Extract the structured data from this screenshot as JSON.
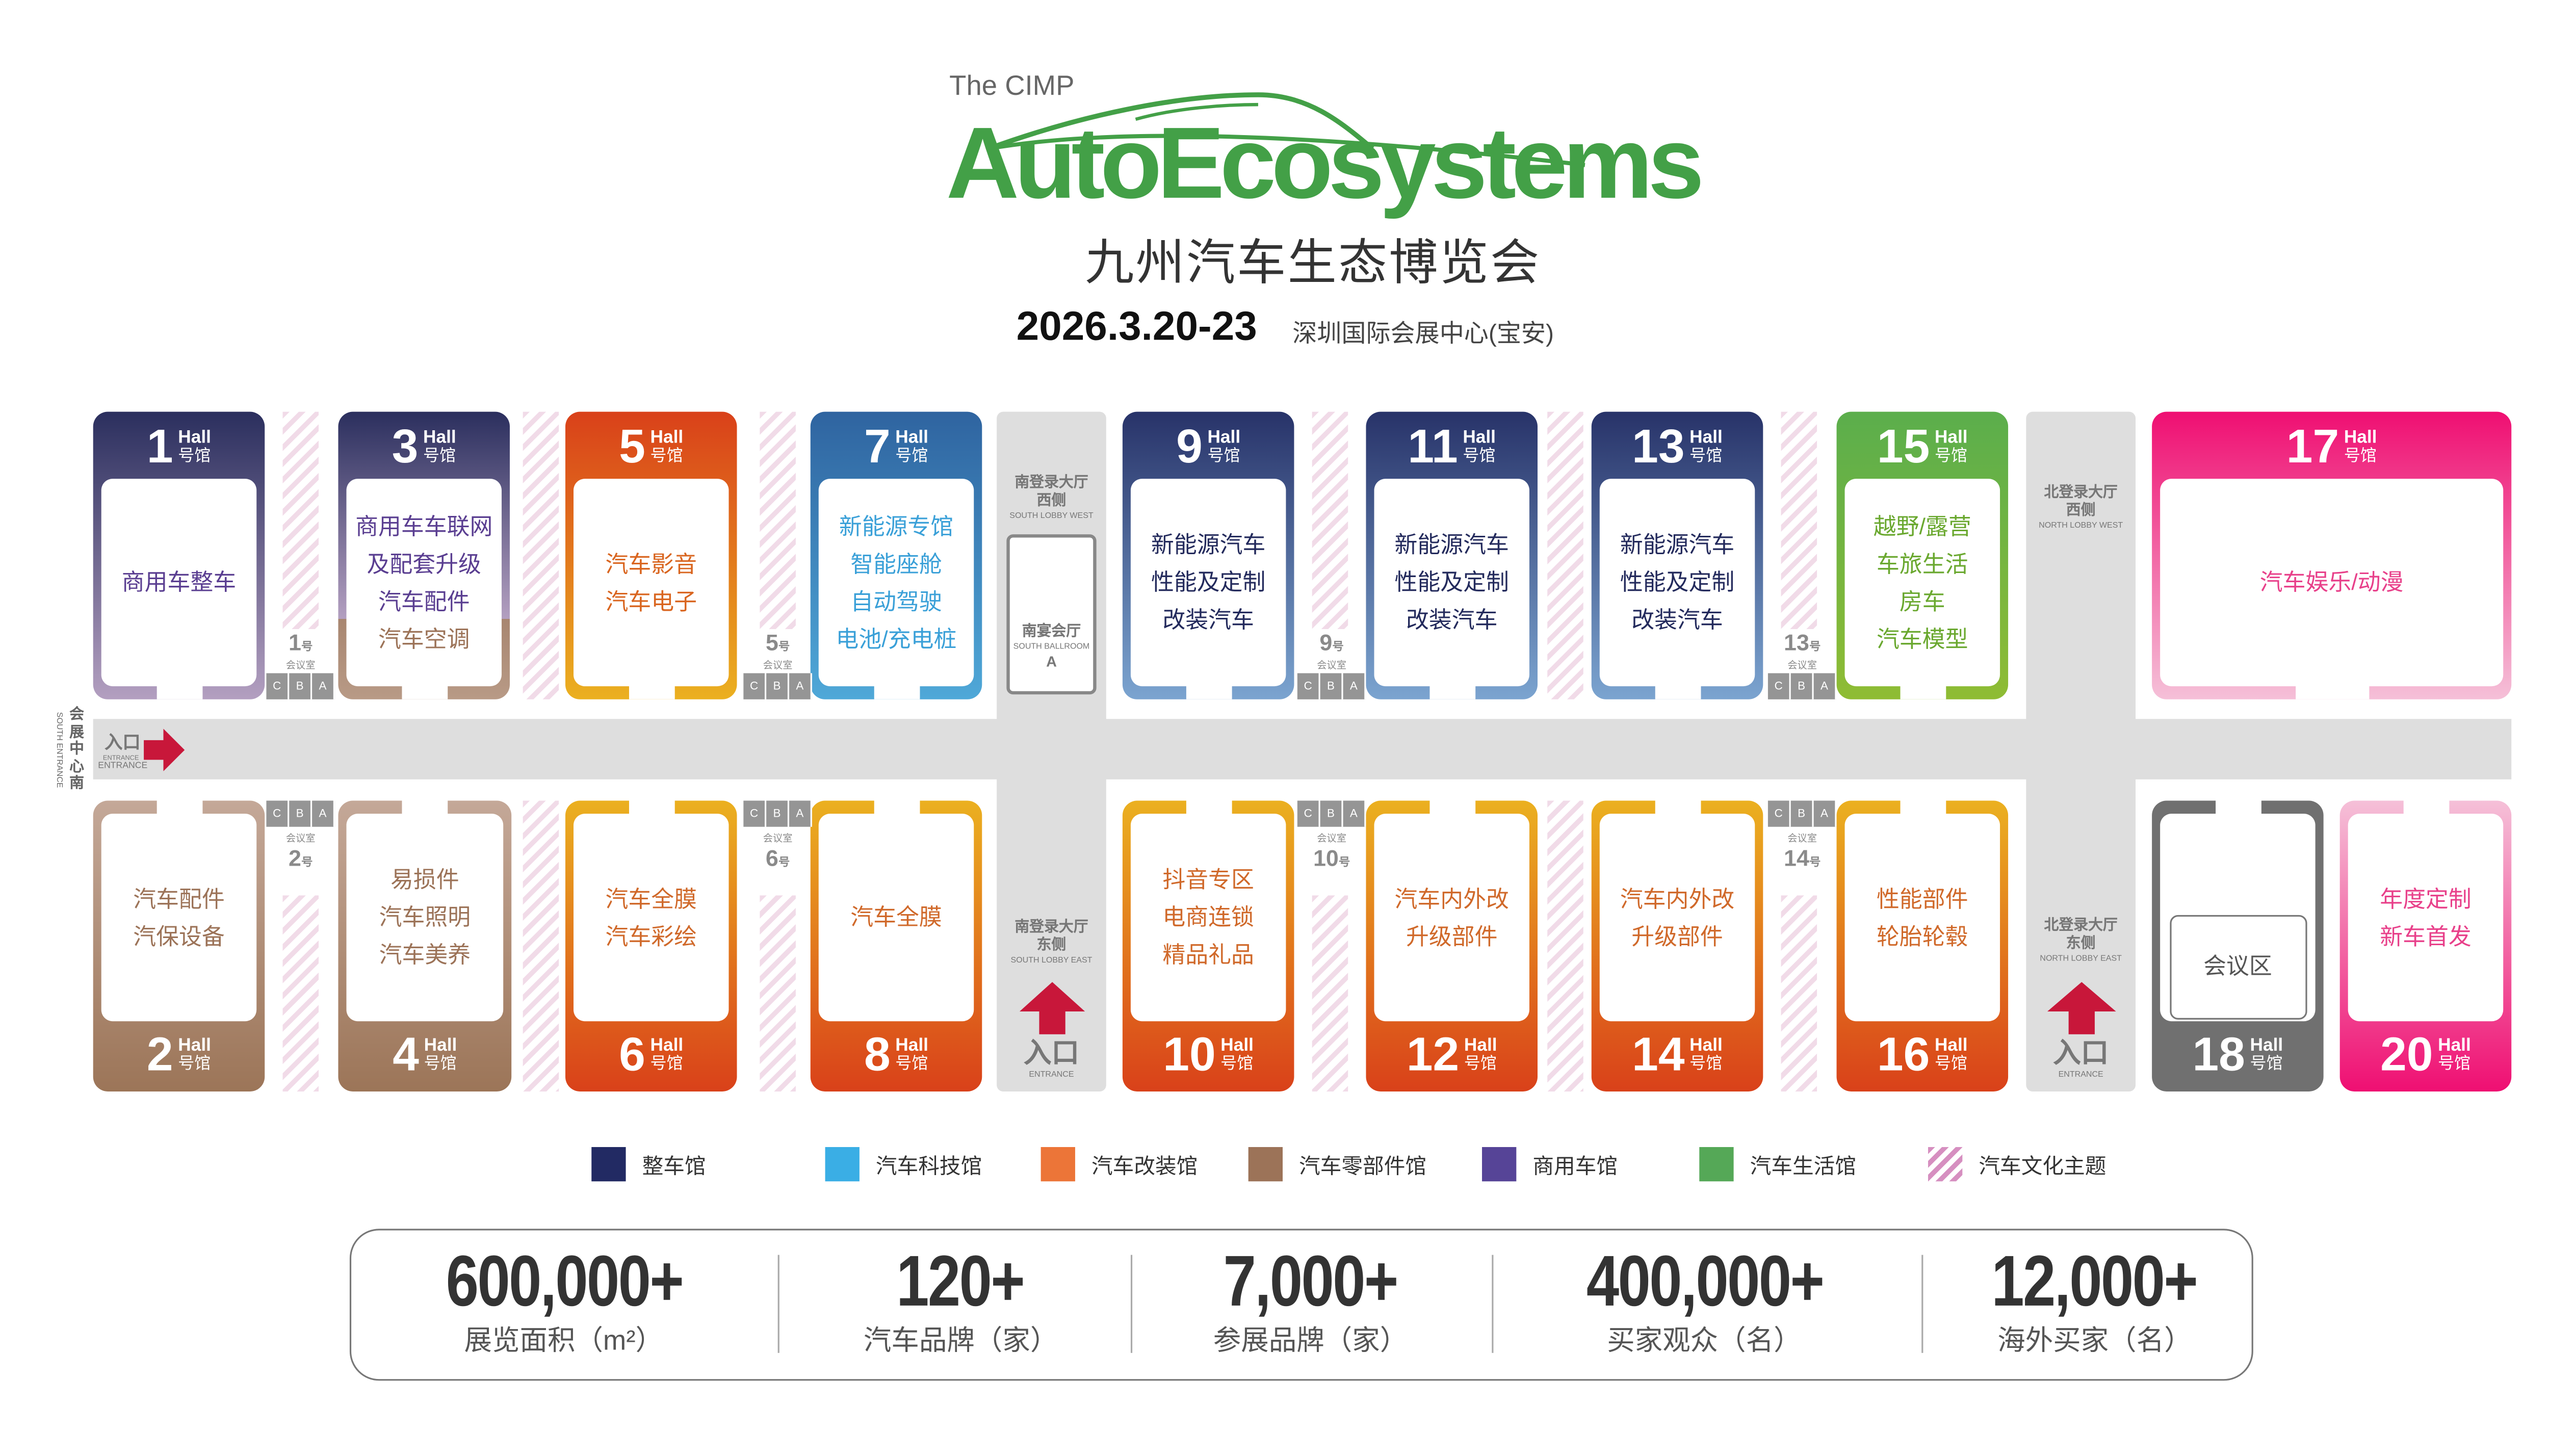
{
  "header": {
    "pretitle": "The CIMP",
    "brand": "AutoEcosystems",
    "title_cn": "九州汽车生态博览会",
    "date": "2026.3.20-23",
    "venue": "深圳国际会展中心(宝安)",
    "brand_color": "#43a047"
  },
  "hall_label": "Hall",
  "hall_suffix": "号馆",
  "meeting_suffix": "号",
  "meeting_label": "会议室",
  "meeting_cells": [
    "C",
    "B",
    "A"
  ],
  "halls": [
    {
      "number": "1",
      "lines": [
        "商用车整车"
      ],
      "text_color": "#5a3e91",
      "colors": [
        "#2b2f5e",
        "#b39fc0"
      ]
    },
    {
      "number": "3",
      "lines": [
        "商用车车联网",
        "及配套升级",
        "汽车配件",
        "汽车空调"
      ],
      "text_color": "#5a3e91",
      "last_line_color": "#9c7358",
      "colors": [
        "#2b2f5e",
        "#b39fc0",
        "#a88670"
      ]
    },
    {
      "number": "5",
      "lines": [
        "汽车影音",
        "汽车电子"
      ],
      "text_color": "#d9651f",
      "colors": [
        "#d9411a",
        "#ebb020"
      ]
    },
    {
      "number": "7",
      "lines": [
        "新能源专馆",
        "智能座舱",
        "自动驾驶",
        "电池/充电桩"
      ],
      "text_color": "#3aa0d8",
      "colors": [
        "#2f64a0",
        "#4fa8d8"
      ]
    },
    {
      "number": "9",
      "lines": [
        "新能源汽车",
        "性能及定制",
        "改装汽车"
      ],
      "text_color": "#232a5c",
      "colors": [
        "#283369",
        "#7ba4d0"
      ]
    },
    {
      "number": "11",
      "lines": [
        "新能源汽车",
        "性能及定制",
        "改装汽车"
      ],
      "text_color": "#232a5c",
      "colors": [
        "#283369",
        "#7ba4d0"
      ]
    },
    {
      "number": "13",
      "lines": [
        "新能源汽车",
        "性能及定制",
        "改装汽车"
      ],
      "text_color": "#232a5c",
      "colors": [
        "#283369",
        "#7ba4d0"
      ]
    },
    {
      "number": "15",
      "lines": [
        "越野/露营",
        "车旅生活",
        "房车",
        "汽车模型"
      ],
      "text_color": "#6aa82f",
      "colors": [
        "#5bae4c",
        "#8fbc34"
      ]
    },
    {
      "number": "17",
      "lines": [
        "汽车娱乐/动漫"
      ],
      "text_color": "#e8408a",
      "colors": [
        "#ef0f72",
        "#f5c0d8"
      ]
    },
    {
      "number": "2",
      "lines": [
        "汽车配件",
        "汽保设备"
      ],
      "text_color": "#9c7358",
      "colors": [
        "#c4a898",
        "#9c7558"
      ]
    },
    {
      "number": "4",
      "lines": [
        "易损件",
        "汽车照明",
        "汽车美养"
      ],
      "text_color": "#9c7358",
      "colors": [
        "#c4a898",
        "#9c7558"
      ]
    },
    {
      "number": "6",
      "lines": [
        "汽车全膜",
        "汽车彩绘"
      ],
      "text_color": "#d0692a",
      "colors": [
        "#ebb020",
        "#d9411a"
      ]
    },
    {
      "number": "8",
      "lines": [
        "汽车全膜"
      ],
      "text_color": "#d0692a",
      "colors": [
        "#ebb020",
        "#d9411a"
      ]
    },
    {
      "number": "10",
      "lines": [
        "抖音专区",
        "电商连锁",
        "精品礼品"
      ],
      "text_color": "#d0692a",
      "colors": [
        "#ebb020",
        "#d9411a"
      ]
    },
    {
      "number": "12",
      "lines": [
        "汽车内外改",
        "升级部件"
      ],
      "text_color": "#d0692a",
      "colors": [
        "#ebb020",
        "#d9411a"
      ]
    },
    {
      "number": "14",
      "lines": [
        "汽车内外改",
        "升级部件"
      ],
      "text_color": "#d0692a",
      "colors": [
        "#ebb020",
        "#d9411a"
      ]
    },
    {
      "number": "16",
      "lines": [
        "性能部件",
        "轮胎轮毂"
      ],
      "text_color": "#d0692a",
      "colors": [
        "#ebb020",
        "#d9411a"
      ]
    },
    {
      "number": "18",
      "lines": [
        "会议区"
      ],
      "text_color": "#555555",
      "colors": [
        "#707070",
        "#707070"
      ]
    },
    {
      "number": "20",
      "lines": [
        "年度定制",
        "新车首发"
      ],
      "text_color": "#e8408a",
      "colors": [
        "#f5c0d8",
        "#ef0f72"
      ]
    }
  ],
  "meeting_rooms": [
    "1",
    "5",
    "9",
    "13",
    "2",
    "6",
    "10",
    "14"
  ],
  "lobbies": {
    "south_west": {
      "cn1": "南登录大厅",
      "cn2": "西侧",
      "en": "SOUTH LOBBY WEST",
      "ballroom_cn": "南宴会厅",
      "ballroom_en": "SOUTH BALLROOM",
      "ballroom_id": "A"
    },
    "south_east": {
      "cn1": "南登录大厅",
      "cn2": "东侧",
      "en": "SOUTH LOBBY EAST",
      "entrance_cn": "入口",
      "entrance_en": "ENTRANCE"
    },
    "north_west": {
      "cn1": "北登录大厅",
      "cn2": "西侧",
      "en": "NORTH LOBBY WEST"
    },
    "north_east": {
      "cn1": "北登录大厅",
      "cn2": "东侧",
      "en": "NORTH LOBBY EAST",
      "entrance_cn": "入口",
      "entrance_en": "ENTRANCE"
    }
  },
  "south_entrance": {
    "cn": "会展中心南",
    "en": "SOUTH ENTRANCE",
    "label_cn": "入口",
    "label_en_small": "ENTRANCE",
    "label_en": "ENTRANCE",
    "arrow_color": "#c8173a"
  },
  "legend": [
    {
      "label": "整车馆",
      "color": "#222a63"
    },
    {
      "label": "汽车科技馆",
      "color": "#3aaee5"
    },
    {
      "label": "汽车改装馆",
      "color": "#ec7538"
    },
    {
      "label": "汽车零部件馆",
      "color": "#9c7358"
    },
    {
      "label": "商用车馆",
      "color": "#564497"
    },
    {
      "label": "汽车生活馆",
      "color": "#55a857"
    },
    {
      "label": "汽车文化主题",
      "color": "#d68fc0",
      "pattern": "stripes"
    }
  ],
  "stats": [
    {
      "value": "600,000+",
      "label": "展览面积（m²）"
    },
    {
      "value": "120+",
      "label": "汽车品牌（家）"
    },
    {
      "value": "7,000+",
      "label": "参展品牌（家）"
    },
    {
      "value": "400,000+",
      "label": "买家观众（名）"
    },
    {
      "value": "12,000+",
      "label": "海外买家（名）"
    }
  ]
}
